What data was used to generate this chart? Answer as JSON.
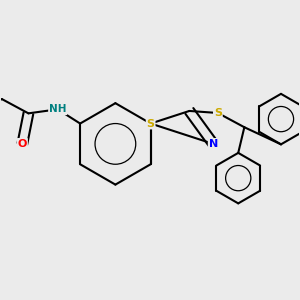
{
  "background_color": "#ebebeb",
  "atom_colors": {
    "C": "#000000",
    "N": "#0000ff",
    "O": "#ff0000",
    "S": "#ccaa00",
    "H": "#008080"
  },
  "bond_color": "#000000",
  "bond_width": 1.5,
  "figsize": [
    3.0,
    3.0
  ],
  "dpi": 100
}
